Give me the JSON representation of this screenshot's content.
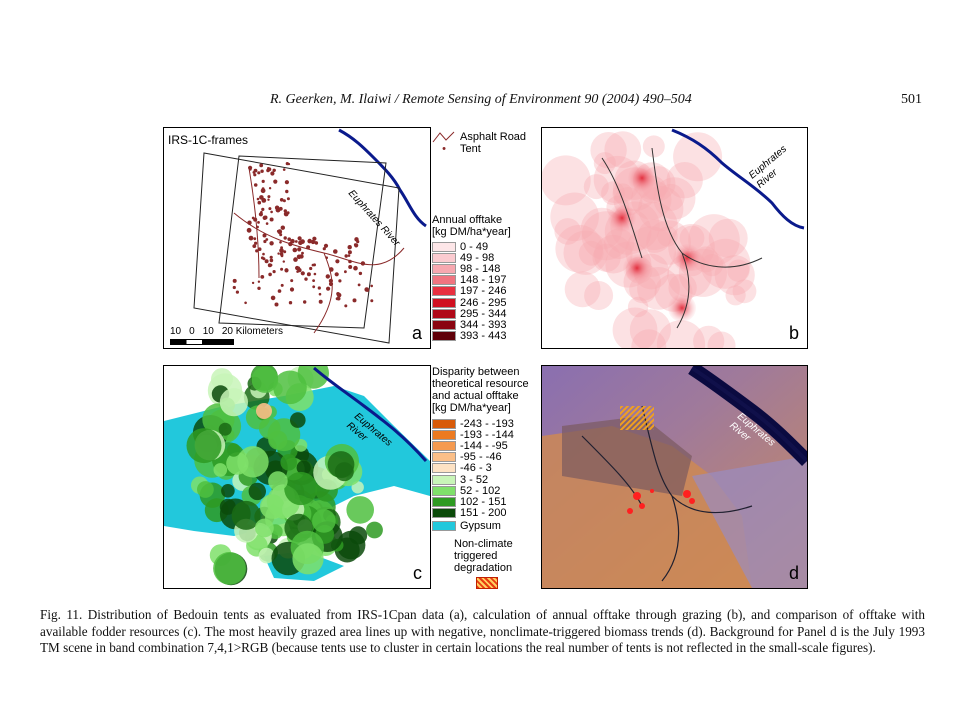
{
  "header": {
    "running_head": "R. Geerken, M. Ilaiwi / Remote Sensing of Environment 90 (2004) 490–504",
    "page_number": "501"
  },
  "panel_a": {
    "label": "a",
    "title": "IRS-1C-frames",
    "river_label": "Euphrates River",
    "scale_ticks": [
      "10",
      "0",
      "10",
      "20 Kilometers"
    ]
  },
  "legend_top": {
    "road": "Asphalt Road",
    "tent": "Tent",
    "offtake_title_1": "Annual offtake",
    "offtake_title_2": "[kg DM/ha*year]",
    "offtake_classes": [
      {
        "label": "0 - 49",
        "color": "#fde6e8"
      },
      {
        "label": "49 - 98",
        "color": "#fbcbd0"
      },
      {
        "label": "98 - 148",
        "color": "#f7a8b0"
      },
      {
        "label": "148 - 197",
        "color": "#f07480"
      },
      {
        "label": "197 - 246",
        "color": "#e83040"
      },
      {
        "label": "246 - 295",
        "color": "#d01020"
      },
      {
        "label": "295 - 344",
        "color": "#b00818"
      },
      {
        "label": "344 - 393",
        "color": "#8a0410"
      },
      {
        "label": "393 - 443",
        "color": "#600008"
      }
    ]
  },
  "panel_b": {
    "label": "b",
    "river_label": "Euphrates River"
  },
  "legend_bottom": {
    "title_1": "Disparity between",
    "title_2": "theoretical resource",
    "title_3": "and actual offtake",
    "title_4": "[kg DM/ha*year]",
    "classes": [
      {
        "label": "-243 - -193",
        "color": "#d85a08"
      },
      {
        "label": "-193 - -144",
        "color": "#ec7a20"
      },
      {
        "label": "-144 - -95",
        "color": "#f59a50"
      },
      {
        "label": "-95 - -46",
        "color": "#fbbf88"
      },
      {
        "label": "-46 - 3",
        "color": "#fde2c4"
      },
      {
        "label": "3 - 52",
        "color": "#c8f5b8"
      },
      {
        "label": "52 - 102",
        "color": "#7fe06a"
      },
      {
        "label": "102 - 151",
        "color": "#2e9a22"
      },
      {
        "label": "151 - 200",
        "color": "#0b4a0a"
      }
    ],
    "gypsum": "Gypsum",
    "gypsum_color": "#22c8dc",
    "degradation_1": "Non-climate",
    "degradation_2": "triggered",
    "degradation_3": "degradation"
  },
  "panel_c": {
    "label": "c",
    "river_label": "Euphrates River"
  },
  "panel_d": {
    "label": "d",
    "river_label": "Euphrates River"
  },
  "caption": "Fig. 11. Distribution of Bedouin tents as evaluated from IRS-1Cpan data (a), calculation of annual offtake through grazing (b), and comparison of offtake with available fodder resources (c). The most heavily grazed area lines up with negative, nonclimate-triggered biomass trends (d). Background for Panel d is the July 1993 TM scene in band combination 7,4,1>RGB (because tents use to cluster in certain locations the real number of tents is not reflected in the small-scale figures)."
}
